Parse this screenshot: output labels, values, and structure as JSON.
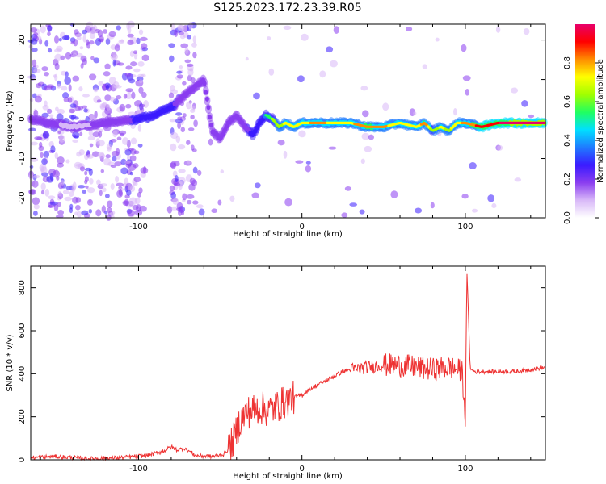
{
  "title": "S125.2023.172.23.39.R05",
  "chart_data": [
    {
      "type": "heatmap",
      "xlabel": "Height of straight line (km)",
      "ylabel": "Frequency (Hz)",
      "xlim": [
        -166,
        149
      ],
      "ylim": [
        -25,
        24
      ],
      "xticks": [
        "-100",
        "0",
        "100"
      ],
      "yticks": [
        "20",
        "10",
        "0",
        "-10",
        "-20"
      ],
      "colorbar": {
        "label": "Normalized spectral amplitude",
        "ticks": [
          "0.0",
          "0.2",
          "0.4",
          "0.6",
          "0.8"
        ],
        "colormap": [
          "#ffffff",
          "#d8b8f8",
          "#8a3df0",
          "#3a1bff",
          "#1f7bff",
          "#00e0ff",
          "#20ff60",
          "#a0ff00",
          "#ffff00",
          "#ff8c00",
          "#ff0000",
          "#e8006a"
        ]
      },
      "ridge": {
        "x": [
          -166,
          -155,
          -140,
          -120,
          -100,
          -90,
          -80,
          -72,
          -66,
          -60,
          -55,
          -50,
          -45,
          -40,
          -35,
          -30,
          -26,
          -22,
          -18,
          -14,
          -10,
          -5,
          0,
          10,
          20,
          30,
          40,
          50,
          60,
          70,
          75,
          80,
          85,
          90,
          95,
          100,
          110,
          120,
          130,
          149
        ],
        "y": [
          0,
          -1,
          -2,
          -1,
          0,
          1,
          3,
          6,
          8,
          10,
          -3,
          -5,
          -1,
          1,
          -2,
          -4,
          -1,
          1,
          0,
          -2,
          -1,
          -2,
          -1,
          -1,
          -1,
          -1,
          -2,
          -2,
          -1,
          -2,
          -1,
          -3,
          -2,
          -3,
          -1,
          -1,
          -2,
          -1,
          -1,
          -1
        ],
        "amplitude": [
          0.3,
          0.25,
          0.2,
          0.25,
          0.4,
          0.45,
          0.4,
          0.3,
          0.3,
          0.3,
          0.25,
          0.25,
          0.3,
          0.3,
          0.35,
          0.4,
          0.5,
          0.55,
          0.6,
          0.65,
          0.7,
          0.7,
          0.75,
          0.8,
          0.75,
          0.75,
          0.85,
          0.8,
          0.7,
          0.7,
          0.85,
          0.6,
          0.7,
          0.65,
          0.75,
          0.8,
          0.9,
          0.95,
          1.0,
          1.0
        ]
      }
    },
    {
      "type": "line",
      "xlabel": "Height of straight line (km)",
      "ylabel": "SNR (10 * v/v)",
      "xlim": [
        -166,
        149
      ],
      "ylim": [
        0,
        900
      ],
      "xticks": [
        "-100",
        "0",
        "100"
      ],
      "yticks": [
        "0",
        "200",
        "400",
        "600",
        "800"
      ],
      "color": "#ee3333",
      "x": [
        -166,
        -150,
        -130,
        -110,
        -95,
        -85,
        -80,
        -76,
        -72,
        -65,
        -55,
        -48,
        -44,
        -42,
        -38,
        -34,
        -30,
        -25,
        -20,
        -15,
        -10,
        -5,
        0,
        5,
        10,
        15,
        20,
        25,
        30,
        40,
        50,
        60,
        70,
        80,
        90,
        95,
        98,
        100,
        101,
        103,
        106,
        110,
        120,
        130,
        140,
        149
      ],
      "y": [
        10,
        15,
        5,
        10,
        20,
        40,
        60,
        45,
        55,
        20,
        15,
        25,
        60,
        90,
        180,
        220,
        230,
        240,
        230,
        250,
        270,
        290,
        300,
        330,
        350,
        370,
        390,
        410,
        420,
        430,
        440,
        440,
        430,
        420,
        430,
        420,
        410,
        200,
        880,
        420,
        410,
        410,
        410,
        410,
        420,
        430
      ]
    }
  ]
}
